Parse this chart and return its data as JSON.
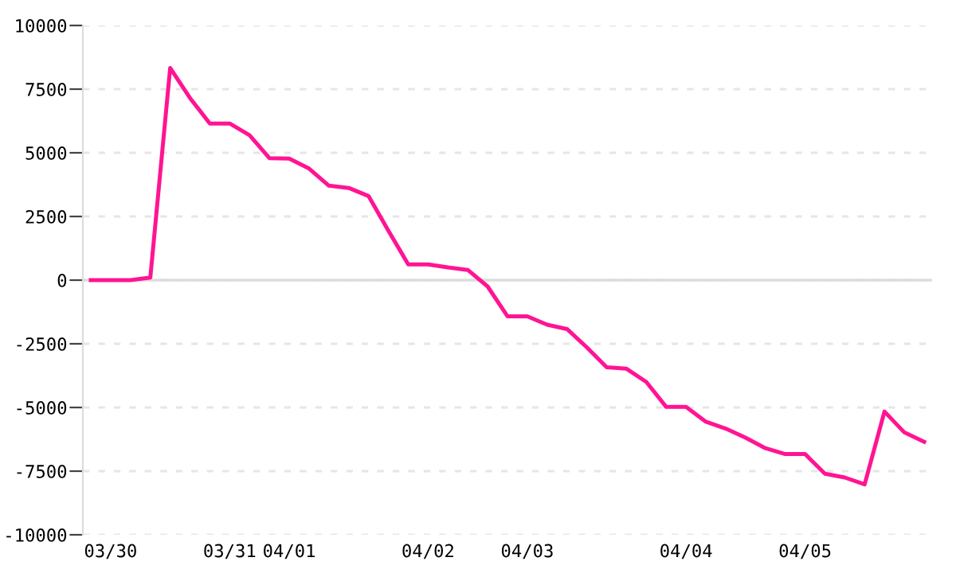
{
  "chart_data": {
    "type": "line",
    "categories": [
      null,
      "03/30",
      null,
      null,
      null,
      null,
      null,
      "03/31",
      null,
      null,
      "04/01",
      null,
      null,
      null,
      null,
      null,
      null,
      "04/02",
      null,
      null,
      null,
      null,
      "04/03",
      null,
      null,
      null,
      null,
      null,
      null,
      null,
      "04/04",
      null,
      null,
      null,
      null,
      null,
      "04/05",
      null,
      null,
      null,
      null,
      null,
      null
    ],
    "series": [
      {
        "color": "#ff1493",
        "values": [
          0,
          0,
          0,
          100,
          8330,
          7150,
          6150,
          6150,
          5690,
          4790,
          4770,
          4380,
          3710,
          3620,
          3300,
          1940,
          620,
          620,
          500,
          400,
          -250,
          -1420,
          -1420,
          -1750,
          -1920,
          -2640,
          -3420,
          -3480,
          -4000,
          -4980,
          -4980,
          -5560,
          -5830,
          -6190,
          -6600,
          -6830,
          -6830,
          -7600,
          -7750,
          -8020,
          -5160,
          -5980,
          -6350
        ]
      }
    ],
    "ylim": [
      -10000,
      10000
    ],
    "yticks": [
      -10000,
      -7500,
      -5000,
      -2500,
      0,
      2500,
      5000,
      7500,
      10000
    ],
    "grid": "y",
    "marker": "none",
    "line_style": "solid",
    "ref_lines": [
      {
        "axis": "y",
        "value": 0,
        "color": "#dddddd"
      }
    ]
  }
}
